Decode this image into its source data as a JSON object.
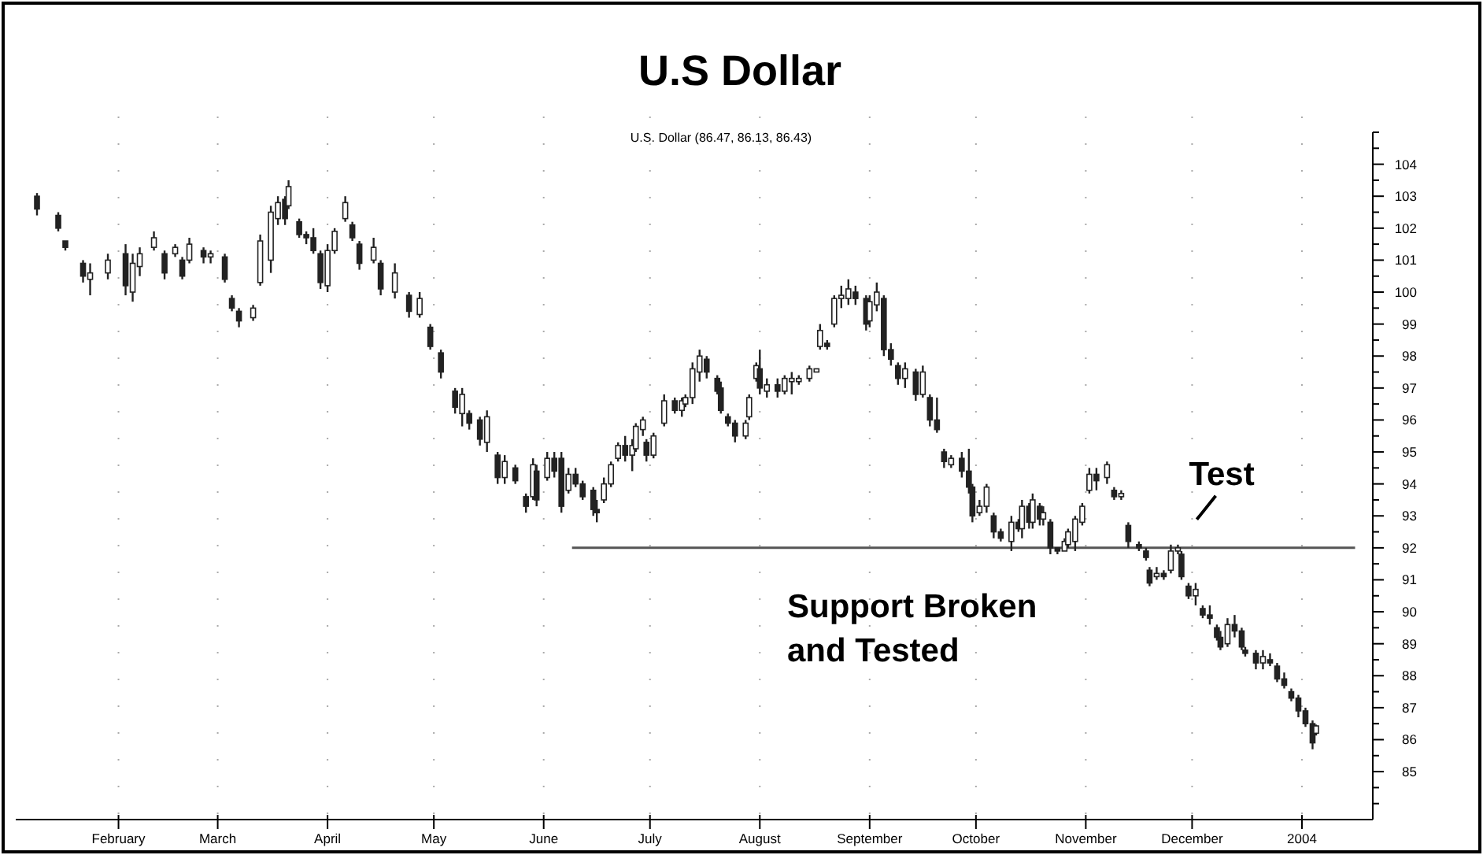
{
  "chart_data": {
    "type": "candlestick",
    "title": "U.S Dollar",
    "subtitle": "U.S. Dollar (86.47, 86.13, 86.43)",
    "annotations": [
      {
        "text": "Test",
        "x": "2003-11-27",
        "y": 92.1
      },
      "Support Broken\nand Tested"
    ],
    "color": "#222222",
    "x": [
      "2003-01-09",
      "2003-01-15",
      "2003-01-17",
      "2003-01-22",
      "2003-01-24",
      "2003-01-29",
      "2003-02-03",
      "2003-02-05",
      "2003-02-07",
      "2003-02-11",
      "2003-02-14",
      "2003-02-17",
      "2003-02-19",
      "2003-02-21",
      "2003-02-25",
      "2003-02-27",
      "2003-03-03",
      "2003-03-05",
      "2003-03-07",
      "2003-03-11",
      "2003-03-13",
      "2003-03-16",
      "2003-03-18",
      "2003-03-20",
      "2003-03-21",
      "2003-03-24",
      "2003-03-26",
      "2003-03-28",
      "2003-03-30",
      "2003-04-01",
      "2003-04-03",
      "2003-04-06",
      "2003-04-08",
      "2003-04-10",
      "2003-04-14",
      "2003-04-16",
      "2003-04-20",
      "2003-04-24",
      "2003-04-27",
      "2003-04-30",
      "2003-05-03",
      "2003-05-07",
      "2003-05-09",
      "2003-05-11",
      "2003-05-14",
      "2003-05-16",
      "2003-05-19",
      "2003-05-21",
      "2003-05-24",
      "2003-05-27",
      "2003-05-29",
      "2003-05-30",
      "2003-06-02",
      "2003-06-04",
      "2003-06-06",
      "2003-06-08",
      "2003-06-10",
      "2003-06-12",
      "2003-06-15",
      "2003-06-16",
      "2003-06-18",
      "2003-06-20",
      "2003-06-22",
      "2003-06-24",
      "2003-06-26",
      "2003-06-27",
      "2003-06-29",
      "2003-06-30",
      "2003-07-02",
      "2003-07-05",
      "2003-07-08",
      "2003-07-10",
      "2003-07-11",
      "2003-07-13",
      "2003-07-15",
      "2003-07-17",
      "2003-07-20",
      "2003-07-21",
      "2003-07-23",
      "2003-07-25",
      "2003-07-28",
      "2003-07-29",
      "2003-07-31",
      "2003-08-01",
      "2003-08-03",
      "2003-08-06",
      "2003-08-08",
      "2003-08-10",
      "2003-08-12",
      "2003-08-15",
      "2003-08-17",
      "2003-08-18",
      "2003-08-20",
      "2003-08-22",
      "2003-08-24",
      "2003-08-26",
      "2003-08-28",
      "2003-08-31",
      "2003-09-01",
      "2003-09-03",
      "2003-09-05",
      "2003-09-07",
      "2003-09-09",
      "2003-09-11",
      "2003-09-14",
      "2003-09-16",
      "2003-09-18",
      "2003-09-20",
      "2003-09-22",
      "2003-09-24",
      "2003-09-27",
      "2003-09-29",
      "2003-09-30",
      "2003-10-02",
      "2003-10-04",
      "2003-10-06",
      "2003-10-08",
      "2003-10-11",
      "2003-10-13",
      "2003-10-14",
      "2003-10-16",
      "2003-10-17",
      "2003-10-19",
      "2003-10-20",
      "2003-10-22",
      "2003-10-24",
      "2003-10-26",
      "2003-10-27",
      "2003-10-29",
      "2003-10-31",
      "2003-11-02",
      "2003-11-04",
      "2003-11-07",
      "2003-11-09",
      "2003-11-11",
      "2003-11-13",
      "2003-11-16",
      "2003-11-18",
      "2003-11-19",
      "2003-11-21",
      "2003-11-23",
      "2003-11-25",
      "2003-11-27",
      "2003-11-28",
      "2003-11-30",
      "2003-12-02",
      "2003-12-04",
      "2003-12-06",
      "2003-12-08",
      "2003-12-09",
      "2003-12-11",
      "2003-12-13",
      "2003-12-15",
      "2003-12-16",
      "2003-12-19",
      "2003-12-21",
      "2003-12-23",
      "2003-12-25",
      "2003-12-27",
      "2003-12-29",
      "2003-12-31",
      "2004-01-02",
      "2004-01-04",
      "2004-01-05"
    ],
    "ohlc": [
      [
        103.0,
        103.1,
        102.4,
        102.6
      ],
      [
        102.4,
        102.5,
        101.9,
        102.0
      ],
      [
        101.6,
        101.6,
        101.3,
        101.4
      ],
      [
        100.9,
        101.0,
        100.3,
        100.5
      ],
      [
        100.4,
        100.9,
        99.9,
        100.6
      ],
      [
        100.6,
        101.2,
        100.4,
        101.0
      ],
      [
        101.2,
        101.5,
        99.9,
        100.2
      ],
      [
        100.0,
        101.2,
        99.7,
        100.9
      ],
      [
        100.8,
        101.4,
        100.5,
        101.2
      ],
      [
        101.4,
        101.9,
        101.3,
        101.7
      ],
      [
        101.2,
        101.3,
        100.4,
        100.6
      ],
      [
        101.2,
        101.5,
        101.1,
        101.4
      ],
      [
        101.0,
        101.1,
        100.4,
        100.5
      ],
      [
        101.0,
        101.7,
        100.9,
        101.5
      ],
      [
        101.3,
        101.4,
        100.9,
        101.1
      ],
      [
        101.1,
        101.3,
        100.9,
        101.2
      ],
      [
        101.1,
        101.2,
        100.3,
        100.4
      ],
      [
        99.8,
        99.9,
        99.4,
        99.5
      ],
      [
        99.4,
        99.5,
        98.9,
        99.1
      ],
      [
        99.2,
        99.6,
        99.1,
        99.5
      ],
      [
        100.3,
        101.8,
        100.2,
        101.6
      ],
      [
        101.0,
        102.7,
        100.6,
        102.5
      ],
      [
        102.3,
        103.0,
        102.1,
        102.8
      ],
      [
        102.9,
        103.0,
        102.1,
        102.3
      ],
      [
        102.7,
        103.5,
        102.6,
        103.3
      ],
      [
        102.2,
        102.3,
        101.7,
        101.8
      ],
      [
        101.8,
        101.9,
        101.5,
        101.7
      ],
      [
        101.7,
        102.0,
        101.2,
        101.3
      ],
      [
        101.2,
        101.3,
        100.1,
        100.3
      ],
      [
        100.2,
        101.5,
        100.0,
        101.3
      ],
      [
        101.3,
        102.0,
        101.2,
        101.9
      ],
      [
        102.3,
        103.0,
        102.2,
        102.8
      ],
      [
        102.1,
        102.2,
        101.6,
        101.7
      ],
      [
        101.5,
        101.6,
        100.7,
        100.9
      ],
      [
        101.0,
        101.7,
        100.9,
        101.4
      ],
      [
        100.9,
        101.0,
        99.9,
        100.1
      ],
      [
        100.0,
        100.9,
        99.8,
        100.6
      ],
      [
        99.9,
        100.0,
        99.2,
        99.4
      ],
      [
        99.3,
        100.0,
        99.2,
        99.8
      ],
      [
        98.9,
        99.0,
        98.2,
        98.3
      ],
      [
        98.1,
        98.2,
        97.3,
        97.5
      ],
      [
        96.9,
        97.0,
        96.2,
        96.4
      ],
      [
        96.2,
        97.0,
        95.8,
        96.8
      ],
      [
        96.2,
        96.3,
        95.7,
        95.9
      ],
      [
        96.0,
        96.1,
        95.2,
        95.4
      ],
      [
        95.3,
        96.3,
        95.0,
        96.1
      ],
      [
        94.9,
        95.0,
        94.0,
        94.2
      ],
      [
        94.2,
        94.9,
        94.0,
        94.7
      ],
      [
        94.5,
        94.6,
        94.0,
        94.1
      ],
      [
        93.6,
        93.7,
        93.1,
        93.3
      ],
      [
        93.6,
        94.8,
        93.5,
        94.6
      ],
      [
        94.4,
        94.6,
        93.3,
        93.5
      ],
      [
        94.2,
        95.0,
        94.1,
        94.8
      ],
      [
        94.8,
        95.0,
        94.2,
        94.4
      ],
      [
        94.8,
        95.0,
        93.1,
        93.3
      ],
      [
        93.8,
        94.5,
        93.7,
        94.3
      ],
      [
        94.3,
        94.5,
        93.9,
        94.0
      ],
      [
        94.0,
        94.1,
        93.5,
        93.6
      ],
      [
        93.8,
        93.9,
        93.0,
        93.2
      ],
      [
        93.2,
        93.5,
        92.8,
        93.1
      ],
      [
        93.5,
        94.2,
        93.4,
        94.0
      ],
      [
        94.0,
        94.7,
        93.9,
        94.6
      ],
      [
        94.8,
        95.3,
        94.7,
        95.2
      ],
      [
        95.2,
        95.5,
        94.7,
        94.9
      ],
      [
        94.9,
        95.4,
        94.4,
        95.2
      ],
      [
        95.1,
        95.9,
        95.0,
        95.8
      ],
      [
        95.7,
        96.1,
        95.5,
        96.0
      ],
      [
        95.3,
        95.4,
        94.7,
        94.9
      ],
      [
        94.9,
        95.6,
        94.8,
        95.5
      ],
      [
        95.9,
        96.8,
        95.8,
        96.6
      ],
      [
        96.6,
        96.7,
        96.2,
        96.3
      ],
      [
        96.3,
        96.7,
        96.1,
        96.6
      ],
      [
        96.5,
        96.8,
        96.4,
        96.7
      ],
      [
        96.7,
        97.8,
        96.5,
        97.6
      ],
      [
        97.5,
        98.2,
        97.2,
        98.0
      ],
      [
        97.9,
        98.0,
        97.3,
        97.5
      ],
      [
        97.3,
        97.4,
        96.8,
        96.9
      ],
      [
        97.0,
        97.2,
        96.2,
        96.3
      ],
      [
        96.1,
        96.2,
        95.8,
        95.9
      ],
      [
        95.9,
        96.0,
        95.3,
        95.5
      ],
      [
        95.5,
        96.0,
        95.4,
        95.9
      ],
      [
        96.1,
        96.8,
        96.0,
        96.7
      ],
      [
        97.3,
        97.8,
        97.2,
        97.7
      ],
      [
        97.6,
        98.2,
        96.8,
        97.0
      ],
      [
        96.9,
        97.3,
        96.7,
        97.1
      ],
      [
        97.1,
        97.3,
        96.7,
        96.9
      ],
      [
        96.9,
        97.4,
        96.8,
        97.3
      ],
      [
        97.2,
        97.5,
        96.8,
        97.3
      ],
      [
        97.2,
        97.4,
        97.1,
        97.3
      ],
      [
        97.3,
        97.7,
        97.2,
        97.6
      ],
      [
        97.5,
        97.6,
        97.5,
        97.6
      ],
      [
        98.3,
        99.0,
        98.2,
        98.8
      ],
      [
        98.4,
        98.5,
        98.2,
        98.3
      ],
      [
        99.0,
        99.9,
        98.9,
        99.8
      ],
      [
        99.8,
        100.2,
        99.5,
        99.9
      ],
      [
        99.8,
        100.4,
        99.6,
        100.1
      ],
      [
        100.0,
        100.2,
        99.6,
        99.8
      ],
      [
        99.8,
        99.9,
        98.8,
        99.0
      ],
      [
        99.1,
        99.9,
        98.9,
        99.7
      ],
      [
        99.6,
        100.3,
        99.4,
        100.0
      ],
      [
        99.8,
        99.9,
        98.0,
        98.2
      ],
      [
        98.2,
        98.4,
        97.7,
        97.9
      ],
      [
        97.7,
        97.8,
        97.1,
        97.3
      ],
      [
        97.3,
        97.8,
        97.0,
        97.6
      ],
      [
        97.5,
        97.6,
        96.6,
        96.8
      ],
      [
        96.8,
        97.7,
        96.7,
        97.5
      ],
      [
        96.7,
        96.8,
        95.8,
        96.0
      ],
      [
        96.0,
        96.7,
        95.6,
        95.7
      ],
      [
        95.0,
        95.1,
        94.5,
        94.7
      ],
      [
        94.6,
        94.9,
        94.5,
        94.8
      ],
      [
        94.8,
        95.0,
        94.2,
        94.4
      ],
      [
        94.4,
        95.1,
        93.7,
        93.9
      ],
      [
        93.9,
        94.0,
        92.8,
        93.0
      ],
      [
        93.1,
        93.5,
        93.0,
        93.3
      ],
      [
        93.3,
        94.0,
        93.1,
        93.9
      ],
      [
        93.0,
        93.1,
        92.3,
        92.5
      ],
      [
        92.5,
        92.6,
        92.2,
        92.3
      ],
      [
        92.2,
        93.0,
        91.9,
        92.8
      ],
      [
        92.8,
        92.9,
        92.5,
        92.6
      ],
      [
        92.6,
        93.5,
        92.3,
        93.3
      ],
      [
        93.3,
        93.4,
        92.6,
        92.8
      ],
      [
        92.8,
        93.7,
        92.6,
        93.5
      ],
      [
        93.3,
        93.4,
        92.7,
        92.9
      ],
      [
        92.9,
        93.3,
        92.7,
        93.1
      ],
      [
        92.8,
        92.9,
        91.8,
        92.0
      ],
      [
        92.0,
        92.0,
        91.8,
        91.9
      ],
      [
        91.9,
        92.3,
        91.9,
        92.2
      ],
      [
        92.1,
        92.6,
        92.0,
        92.5
      ],
      [
        92.2,
        93.0,
        91.9,
        92.9
      ],
      [
        92.8,
        93.4,
        92.7,
        93.3
      ],
      [
        93.8,
        94.5,
        93.7,
        94.3
      ],
      [
        94.3,
        94.5,
        93.8,
        94.1
      ],
      [
        94.2,
        94.7,
        94.0,
        94.6
      ],
      [
        93.8,
        93.9,
        93.5,
        93.6
      ],
      [
        93.6,
        93.8,
        93.5,
        93.7
      ],
      [
        92.7,
        92.8,
        92.0,
        92.2
      ],
      [
        92.1,
        92.2,
        91.9,
        92.0
      ],
      [
        91.9,
        92.0,
        91.6,
        91.7
      ],
      [
        91.3,
        91.4,
        90.8,
        90.9
      ],
      [
        91.1,
        91.4,
        91.0,
        91.2
      ],
      [
        91.2,
        91.3,
        91.0,
        91.1
      ],
      [
        91.3,
        92.1,
        91.2,
        91.9
      ],
      [
        91.9,
        92.1,
        91.8,
        92.0
      ],
      [
        91.8,
        91.9,
        91.0,
        91.1
      ],
      [
        90.8,
        90.9,
        90.4,
        90.5
      ],
      [
        90.5,
        90.9,
        90.2,
        90.7
      ],
      [
        90.1,
        90.2,
        89.8,
        89.9
      ],
      [
        89.9,
        90.2,
        89.6,
        89.8
      ],
      [
        89.5,
        89.6,
        89.1,
        89.2
      ],
      [
        89.2,
        89.4,
        88.8,
        88.9
      ],
      [
        89.0,
        89.8,
        88.9,
        89.6
      ],
      [
        89.6,
        89.9,
        89.2,
        89.4
      ],
      [
        89.4,
        89.5,
        88.8,
        88.9
      ],
      [
        88.8,
        88.9,
        88.6,
        88.7
      ],
      [
        88.7,
        88.8,
        88.2,
        88.4
      ],
      [
        88.4,
        88.8,
        88.2,
        88.6
      ],
      [
        88.5,
        88.7,
        88.3,
        88.4
      ],
      [
        88.3,
        88.4,
        87.8,
        87.9
      ],
      [
        87.9,
        88.1,
        87.6,
        87.7
      ],
      [
        87.5,
        87.6,
        87.2,
        87.3
      ],
      [
        87.3,
        87.4,
        86.7,
        86.9
      ],
      [
        86.9,
        87.0,
        86.4,
        86.5
      ],
      [
        86.5,
        86.6,
        85.7,
        85.9
      ],
      [
        86.2,
        86.47,
        86.13,
        86.43
      ]
    ],
    "series": [
      {
        "type": "line",
        "x": [
          "2003-06-09",
          "2004-01-16"
        ],
        "values": [
          92,
          92
        ],
        "color": "#555555"
      }
    ],
    "xlim": [
      "2003-01-03",
      "2004-01-21"
    ],
    "xticks": [
      {
        "value": "2003-02-01",
        "label": "February"
      },
      {
        "value": "2003-03-01",
        "label": "March"
      },
      {
        "value": "2003-04-01",
        "label": "April"
      },
      {
        "value": "2003-05-01",
        "label": "May"
      },
      {
        "value": "2003-06-01",
        "label": "June"
      },
      {
        "value": "2003-07-01",
        "label": "July"
      },
      {
        "value": "2003-08-01",
        "label": "August"
      },
      {
        "value": "2003-09-01",
        "label": "September"
      },
      {
        "value": "2003-10-01",
        "label": "October"
      },
      {
        "value": "2003-11-01",
        "label": "November"
      },
      {
        "value": "2003-12-01",
        "label": "December"
      },
      {
        "value": "2004-01-01",
        "label": "2004"
      }
    ],
    "ylim": [
      83.5,
      105
    ],
    "yticks": [
      {
        "value": 84,
        "label": null
      },
      {
        "value": 84.5,
        "label": null
      },
      85,
      {
        "value": 85.5,
        "label": null
      },
      86,
      {
        "value": 86.5,
        "label": null
      },
      87,
      {
        "value": 87.5,
        "label": null
      },
      88,
      {
        "value": 88.5,
        "label": null
      },
      89,
      {
        "value": 89.5,
        "label": null
      },
      90,
      {
        "value": 90.5,
        "label": null
      },
      91,
      {
        "value": 91.5,
        "label": null
      },
      92,
      {
        "value": 92.5,
        "label": null
      },
      93,
      {
        "value": 93.5,
        "label": null
      },
      94,
      {
        "value": 94.5,
        "label": null
      },
      95,
      {
        "value": 95.5,
        "label": null
      },
      96,
      {
        "value": 96.5,
        "label": null
      },
      97,
      {
        "value": 97.5,
        "label": null
      },
      98,
      {
        "value": 98.5,
        "label": null
      },
      99,
      {
        "value": 99.5,
        "label": null
      },
      100,
      {
        "value": 100.5,
        "label": null
      },
      101,
      {
        "value": 101.5,
        "label": null
      },
      102,
      {
        "value": 102.5,
        "label": null
      },
      103,
      {
        "value": 103.5,
        "label": null
      },
      104,
      {
        "value": 104.5,
        "label": null
      },
      {
        "value": 105,
        "label": null
      }
    ],
    "grid": "x"
  }
}
